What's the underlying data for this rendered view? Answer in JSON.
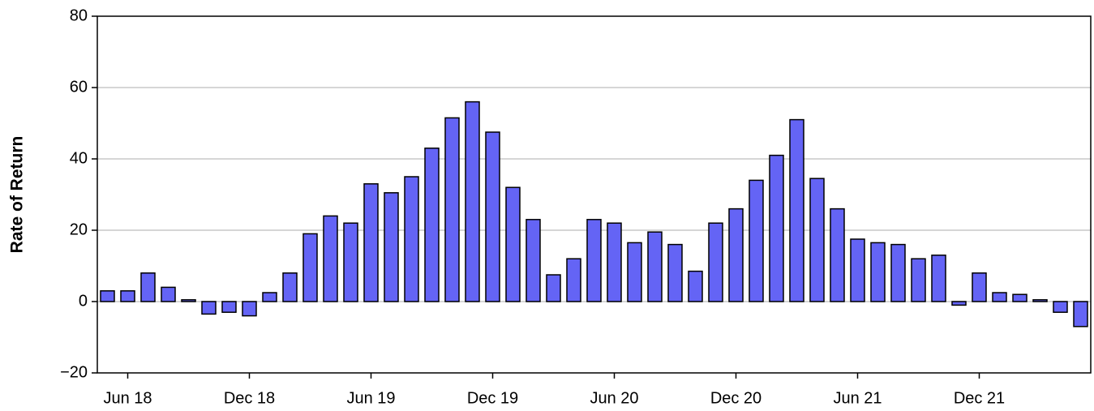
{
  "chart_data": {
    "type": "bar",
    "y_label": "Rate of Return",
    "categories": [
      null,
      "Jun 18",
      null,
      null,
      null,
      null,
      null,
      "Dec 18",
      null,
      null,
      null,
      null,
      null,
      "Jun 19",
      null,
      null,
      null,
      null,
      null,
      "Dec 19",
      null,
      null,
      null,
      null,
      null,
      "Jun 20",
      null,
      null,
      null,
      null,
      null,
      "Dec 20",
      null,
      null,
      null,
      null,
      null,
      "Jun 21",
      null,
      null,
      null,
      null,
      null,
      "Dec 21",
      null,
      null,
      null,
      null,
      null
    ],
    "values": [
      3,
      3,
      8,
      4,
      0.5,
      -3.5,
      -3,
      -4,
      2.5,
      8,
      19,
      24,
      22,
      33,
      30.5,
      35,
      43,
      51.5,
      56,
      47.5,
      32,
      23,
      7.5,
      12,
      23,
      22,
      16.5,
      19.5,
      16,
      8.5,
      22,
      26,
      34,
      41,
      51,
      34.5,
      26,
      17.5,
      16.5,
      16,
      12,
      13,
      -1,
      8,
      2.5,
      2,
      0.5,
      -3,
      -7
    ],
    "color": "#6464f5",
    "ylim": [
      -20,
      80
    ],
    "yticks": [
      {
        "value": -20,
        "label": "−20"
      },
      0,
      20,
      40,
      60,
      80
    ],
    "grid": true
  }
}
